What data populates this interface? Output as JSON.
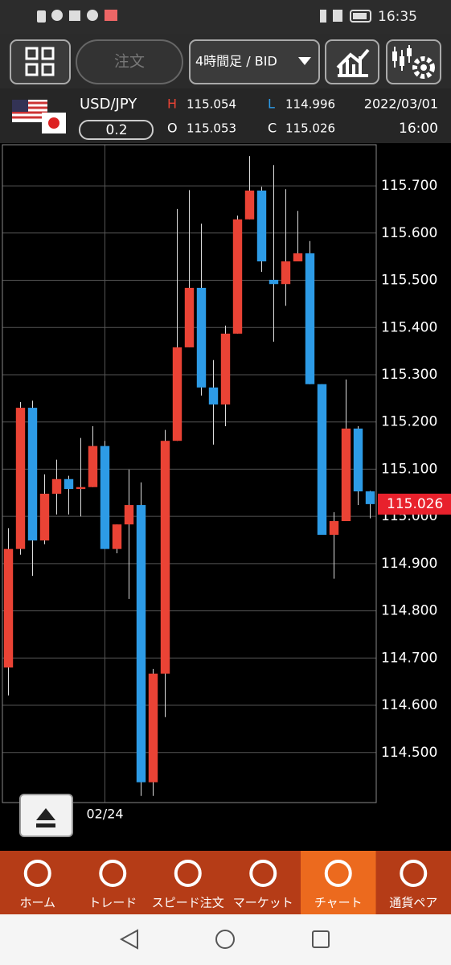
{
  "status": {
    "time": "16:35"
  },
  "toolbar": {
    "order": "注文",
    "timeframe": "4時間足 / BID"
  },
  "quote": {
    "pair": "USD/JPY",
    "spread": 0.2,
    "high_label": "H",
    "high": 115.054,
    "low_label": "L",
    "low": 114.996,
    "open_label": "O",
    "open": 115.053,
    "close_label": "C",
    "close": 115.026,
    "date": "2022/03/01",
    "time": "16:00"
  },
  "chart_data": {
    "type": "candlestick",
    "categories": [
      null,
      null,
      null,
      null,
      null,
      null,
      null,
      null,
      "02/24",
      null,
      null,
      null,
      null,
      null,
      null,
      null,
      null,
      null,
      null,
      null,
      null,
      null,
      null,
      null,
      null,
      null,
      null,
      null,
      null,
      null,
      null
    ],
    "open": [
      114.68,
      114.931,
      115.23,
      114.949,
      115.048,
      115.079,
      115.058,
      115.062,
      115.149,
      114.931,
      114.983,
      115.024,
      114.437,
      114.667,
      115.16,
      115.358,
      115.484,
      115.273,
      115.237,
      115.387,
      115.629,
      115.69,
      115.501,
      115.492,
      115.54,
      115.557,
      115.28,
      114.961,
      114.99,
      115.186,
      115.053
    ],
    "high": [
      114.975,
      115.242,
      115.245,
      115.089,
      115.12,
      115.086,
      115.166,
      115.191,
      115.16,
      114.983,
      115.099,
      115.072,
      114.677,
      115.183,
      115.651,
      115.691,
      115.62,
      115.331,
      115.404,
      115.637,
      115.763,
      115.698,
      115.744,
      115.693,
      115.647,
      115.583,
      115.28,
      115.009,
      115.29,
      115.191,
      115.054
    ],
    "low": [
      114.621,
      114.919,
      114.874,
      114.941,
      115.004,
      115.004,
      115.0,
      115.062,
      114.931,
      114.922,
      114.825,
      114.408,
      114.408,
      114.575,
      115.16,
      115.358,
      115.256,
      115.152,
      115.191,
      115.387,
      115.629,
      115.518,
      115.37,
      115.446,
      115.54,
      115.28,
      114.961,
      114.868,
      114.99,
      115.024,
      114.996
    ],
    "close": [
      114.931,
      115.23,
      114.949,
      115.048,
      115.079,
      115.058,
      115.062,
      115.149,
      114.931,
      114.983,
      115.024,
      114.437,
      114.667,
      115.16,
      115.358,
      115.484,
      115.273,
      115.237,
      115.387,
      115.629,
      115.69,
      115.54,
      115.492,
      115.54,
      115.557,
      115.28,
      114.961,
      114.99,
      115.186,
      115.053,
      115.026
    ],
    "up_color": "#ea4335",
    "down_color": "#2d9be6",
    "ylim": [
      114.394,
      115.787
    ],
    "yticks": [
      {
        "value": 114.5,
        "label": "114.500"
      },
      {
        "value": 114.6,
        "label": "114.600"
      },
      {
        "value": 114.7,
        "label": "114.700"
      },
      {
        "value": 114.8,
        "label": "114.800"
      },
      {
        "value": 114.9,
        "label": "114.900"
      },
      {
        "value": 115.0,
        "label": "115.000"
      },
      {
        "value": 115.1,
        "label": "115.100"
      },
      {
        "value": 115.2,
        "label": "115.200"
      },
      {
        "value": 115.3,
        "label": "115.300"
      },
      {
        "value": 115.4,
        "label": "115.400"
      },
      {
        "value": 115.5,
        "label": "115.500"
      },
      {
        "value": 115.6,
        "label": "115.600"
      },
      {
        "value": 115.7,
        "label": "115.700"
      }
    ],
    "grid": true,
    "last_price": 115.026,
    "last_price_color": "#e8212c"
  },
  "nav": {
    "items": [
      "ホーム",
      "トレード",
      "スピード注文",
      "マーケット",
      "チャート",
      "通貨ペア"
    ],
    "selected": 4
  }
}
